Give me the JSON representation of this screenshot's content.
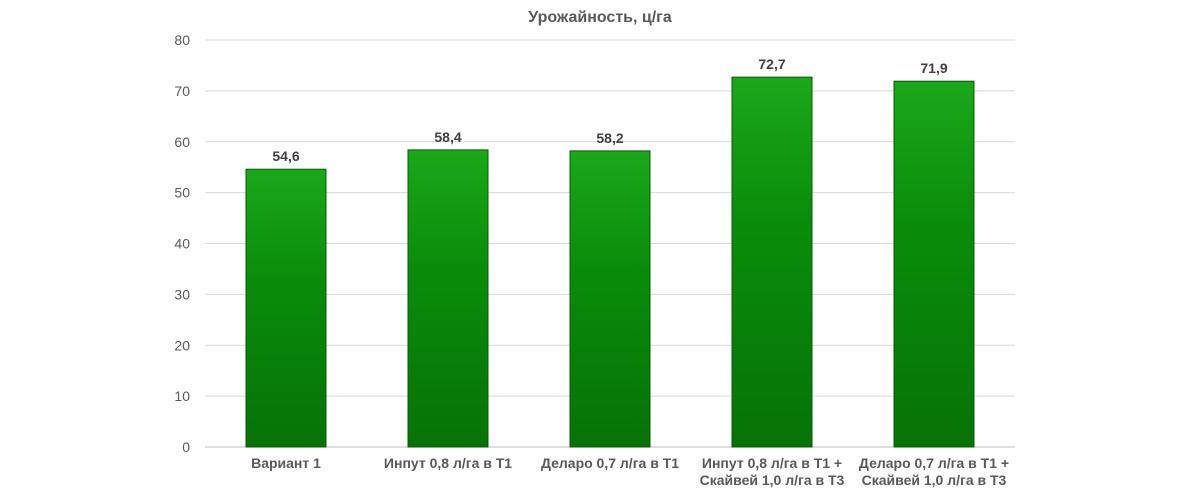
{
  "chart_data": {
    "type": "bar",
    "title": "Урожайность, ц/га",
    "xlabel": "",
    "ylabel": "",
    "categories": [
      [
        "Вариант 1"
      ],
      [
        "Инпут 0,8 л/га в Т1"
      ],
      [
        "Деларо 0,7 л/га в Т1"
      ],
      [
        "Инпут 0,8 л/га в Т1 +",
        "Скайвей 1,0 л/га в Т3"
      ],
      [
        "Деларо 0,7 л/га в Т1 +",
        "Скайвей 1,0 л/га в Т3"
      ]
    ],
    "values": [
      54.6,
      58.4,
      58.2,
      72.7,
      71.9
    ],
    "value_labels": [
      "54,6",
      "58,4",
      "58,2",
      "72,7",
      "71,9"
    ],
    "ylim": [
      0,
      80
    ],
    "yticks": [
      0,
      10,
      20,
      30,
      40,
      50,
      60,
      70,
      80
    ],
    "grid": true,
    "legend": "none",
    "colors": {
      "bar_top": "#1aa81a",
      "bar_mid": "#0a8c0a",
      "bar_bottom": "#067306",
      "bar_edge": "#045c04",
      "grid": "#d9d9d9",
      "axis": "#bfbfbf",
      "text": "#595959",
      "data_label": "#404040"
    }
  }
}
